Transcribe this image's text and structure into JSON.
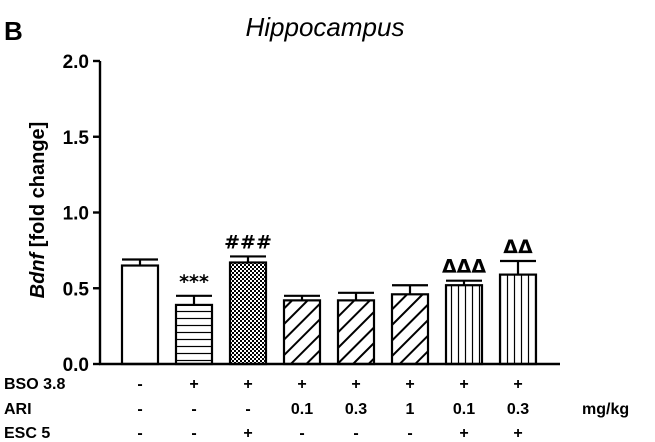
{
  "panel_letter": "B",
  "chart_data": {
    "type": "bar",
    "title": "Hippocampus",
    "ylabel_gene": "Bdnf",
    "ylabel_rest": " [fold change]",
    "ylim": [
      0,
      2.0
    ],
    "yticks": [
      "0.0",
      "0.5",
      "1.0",
      "1.5",
      "2.0"
    ],
    "ytick_values": [
      0,
      0.5,
      1.0,
      1.5,
      2.0
    ],
    "grid": false,
    "bars": [
      {
        "value": 0.65,
        "error": 0.04,
        "pattern": "blank",
        "annotation": ""
      },
      {
        "value": 0.39,
        "error": 0.06,
        "pattern": "horizontal",
        "annotation": "***"
      },
      {
        "value": 0.67,
        "error": 0.04,
        "pattern": "checker",
        "annotation": "###"
      },
      {
        "value": 0.42,
        "error": 0.03,
        "pattern": "diagonal",
        "annotation": ""
      },
      {
        "value": 0.42,
        "error": 0.05,
        "pattern": "diagonal",
        "annotation": ""
      },
      {
        "value": 0.46,
        "error": 0.06,
        "pattern": "diagonal",
        "annotation": ""
      },
      {
        "value": 0.52,
        "error": 0.03,
        "pattern": "vertical",
        "annotation": "ΔΔΔ"
      },
      {
        "value": 0.59,
        "error": 0.09,
        "pattern": "vertical",
        "annotation": "ΔΔ"
      }
    ],
    "treatment_rows": [
      {
        "label": "BSO 3.8",
        "values": [
          "-",
          "+",
          "+",
          "+",
          "+",
          "+",
          "+",
          "+"
        ]
      },
      {
        "label": "ARI",
        "values": [
          "-",
          "-",
          "-",
          "0.1",
          "0.3",
          "1",
          "0.1",
          "0.3"
        ]
      },
      {
        "label": "ESC 5",
        "values": [
          "-",
          "-",
          "+",
          "-",
          "-",
          "-",
          "+",
          "+"
        ]
      }
    ],
    "units_label": "mg/kg"
  }
}
